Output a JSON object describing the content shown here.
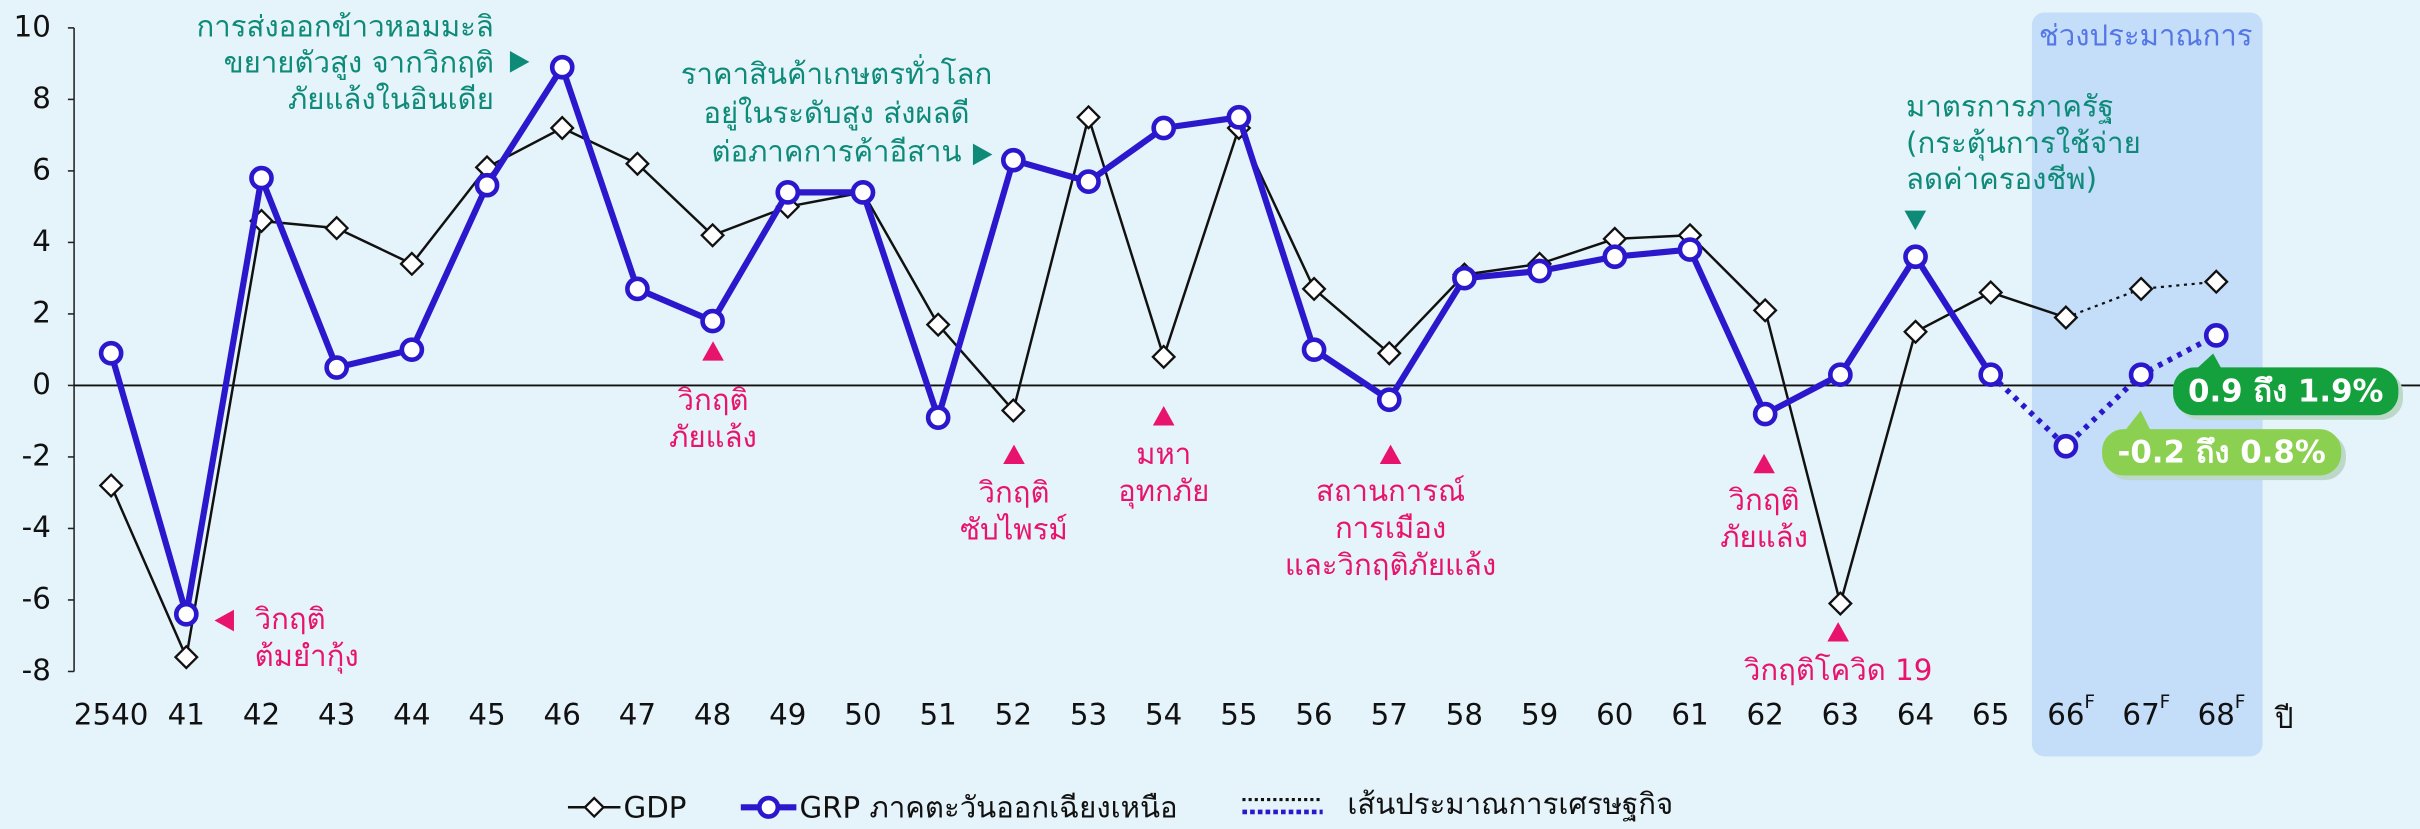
{
  "chart_data": {
    "type": "line",
    "categories": [
      "2540",
      "41",
      "42",
      "43",
      "44",
      "45",
      "46",
      "47",
      "48",
      "49",
      "50",
      "51",
      "52",
      "53",
      "54",
      "55",
      "56",
      "57",
      "58",
      "59",
      "60",
      "61",
      "62",
      "63",
      "64",
      "65",
      "66",
      "67",
      "68"
    ],
    "x_label": "ปี",
    "ylim": [
      -8,
      10
    ],
    "yticks": [
      -8,
      -6,
      -4,
      -2,
      0,
      2,
      4,
      6,
      8,
      10
    ],
    "series": [
      {
        "name": "GDP",
        "color": "#111111",
        "marker": "diamond",
        "forecast_from": "66",
        "values": [
          -2.8,
          -7.6,
          4.6,
          4.4,
          3.4,
          6.1,
          7.2,
          6.2,
          4.2,
          5.0,
          5.4,
          1.7,
          -0.7,
          7.5,
          0.8,
          7.2,
          2.7,
          0.9,
          3.1,
          3.4,
          4.1,
          4.2,
          2.1,
          -6.1,
          1.5,
          2.6,
          1.9,
          2.7,
          2.9
        ]
      },
      {
        "name": "GRP ภาคตะวันออกเฉียงเหนือ",
        "color": "#2b18cc",
        "marker": "circle",
        "forecast_from": "65",
        "values": [
          0.9,
          -6.4,
          5.8,
          0.5,
          1.0,
          5.6,
          8.9,
          2.7,
          1.8,
          5.4,
          5.4,
          -0.9,
          6.3,
          5.7,
          7.2,
          7.5,
          1.0,
          -0.4,
          3.0,
          3.2,
          3.6,
          3.8,
          -0.8,
          0.3,
          3.6,
          0.3,
          -1.7,
          0.3,
          1.4
        ]
      }
    ],
    "forecast_legend": "เส้นประมาณการเศรษฐกิจ",
    "forecast_band": {
      "label": "ช่วงประมาณการ",
      "from": "66",
      "to": "68",
      "superscript": "F",
      "color": "#c4ddf8"
    },
    "annotations": [
      {
        "lines": [
          "การส่งออกข้าวหอมมะลิ",
          "ขยายตัวสูง จากวิกฤติ",
          "ภัยแล้งในอินเดีย"
        ],
        "color": "#0e8a78"
      },
      {
        "lines": [
          "ราคาสินค้าเกษตรทั่วโลก",
          "อยู่ในระดับสูง ส่งผลดี",
          "ต่อภาคการค้าอีสาน"
        ],
        "color": "#0e8a78"
      },
      {
        "lines": [
          "มาตรการภาครัฐ",
          "(กระตุ้นการใช้จ่าย",
          "ลดค่าครองชีพ)"
        ],
        "color": "#0e8a78"
      },
      {
        "lines": [
          "วิกฤติ",
          "ต้มยำกุ้ง"
        ],
        "color": "#e8136c"
      },
      {
        "lines": [
          "วิกฤติ",
          "ภัยแล้ง"
        ],
        "color": "#e8136c"
      },
      {
        "lines": [
          "วิกฤติ",
          "ซับไพรม์"
        ],
        "color": "#e8136c"
      },
      {
        "lines": [
          "มหา",
          "อุทกภัย"
        ],
        "color": "#e8136c"
      },
      {
        "lines": [
          "สถานการณ์",
          "การเมือง",
          "และวิกฤติภัยแล้ง"
        ],
        "color": "#e8136c"
      },
      {
        "lines": [
          "วิกฤติ",
          "ภัยแล้ง"
        ],
        "color": "#e8136c"
      },
      {
        "lines": [
          "วิกฤติโควิด 19"
        ],
        "color": "#e8136c"
      }
    ],
    "callouts": [
      {
        "text": "0.9 ถึง 1.9%",
        "color": "#14a03c"
      },
      {
        "text": "-0.2 ถึง 0.8%",
        "color": "#8cd052"
      }
    ]
  }
}
